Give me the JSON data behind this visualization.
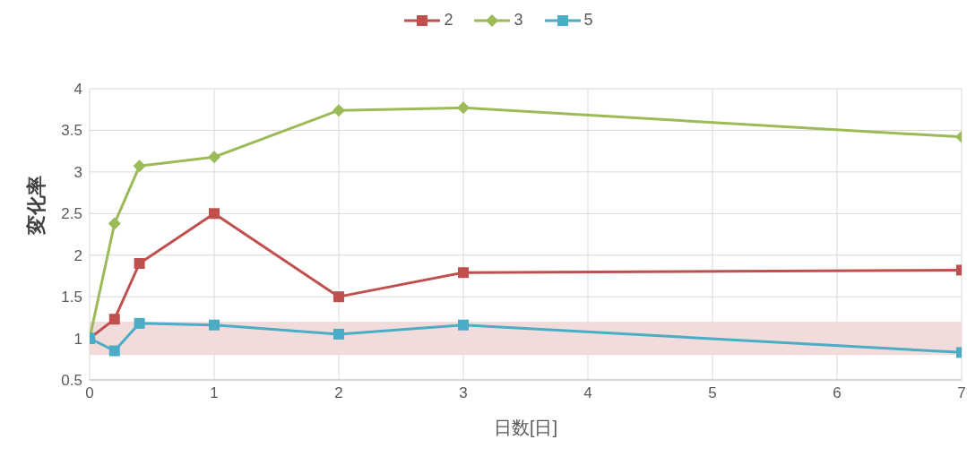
{
  "chart_data": {
    "type": "line",
    "xlabel": "日数[日]",
    "ylabel": "変化率",
    "x": [
      0,
      0.2,
      0.4,
      1,
      2,
      3,
      7
    ],
    "series": [
      {
        "name": "2",
        "color": "#c0504d",
        "marker": "square",
        "values": [
          1.0,
          1.23,
          1.9,
          2.5,
          1.5,
          1.79,
          1.82
        ]
      },
      {
        "name": "3",
        "color": "#9bbb59",
        "marker": "diamond",
        "values": [
          1.0,
          2.38,
          3.07,
          3.18,
          3.74,
          3.77,
          3.42
        ]
      },
      {
        "name": "5",
        "color": "#4bacc6",
        "marker": "square",
        "values": [
          1.0,
          0.85,
          1.18,
          1.16,
          1.05,
          1.16,
          0.83
        ]
      }
    ],
    "xlim": [
      0,
      7
    ],
    "xticks": [
      0,
      1,
      2,
      3,
      4,
      5,
      6,
      7
    ],
    "ylim": [
      0.5,
      4
    ],
    "yticks": [
      0.5,
      1,
      1.5,
      2,
      2.5,
      3,
      3.5,
      4
    ],
    "grid": true,
    "legend": "top",
    "bands": [
      {
        "axis": "y",
        "from": 0.8,
        "to": 1.2,
        "color": "#f2dcdb"
      }
    ]
  }
}
